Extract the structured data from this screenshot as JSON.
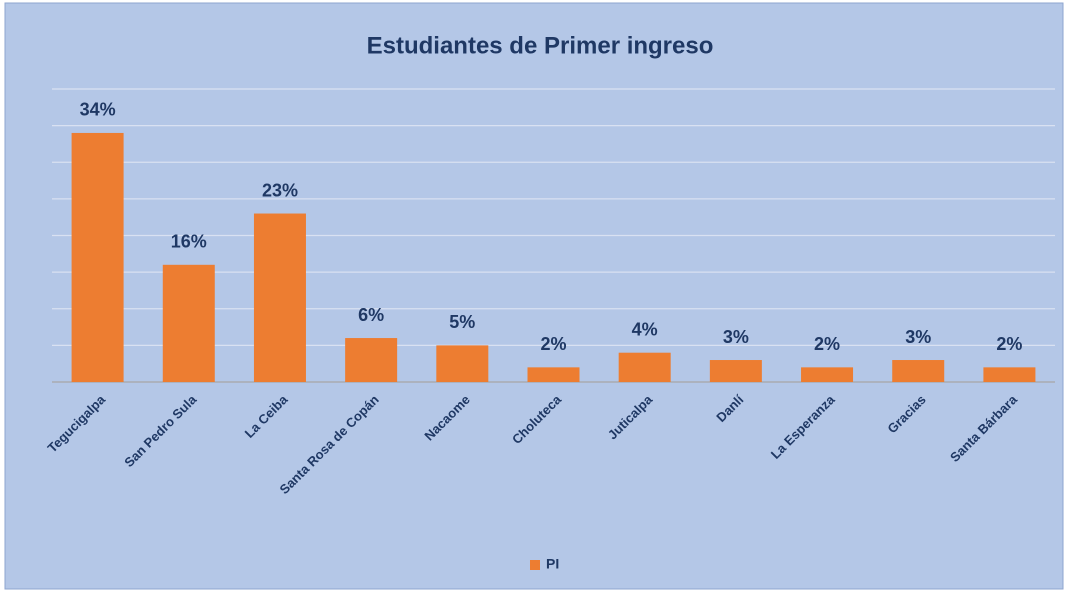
{
  "chart_data": {
    "type": "bar",
    "title": "Estudiantes  de Primer ingreso",
    "categories": [
      "Tegucigalpa",
      "San Pedro Sula",
      "La Ceiba",
      "Santa Rosa de Copán",
      "Nacaome",
      "Choluteca",
      "Juticalpa",
      "Danlí",
      "La Esperanza",
      "Gracias",
      "Santa Bárbara"
    ],
    "series": [
      {
        "name": "PI",
        "color": "#ed7d31",
        "values": [
          34,
          16,
          23,
          6,
          5,
          2,
          4,
          3,
          2,
          3,
          2
        ],
        "value_labels": [
          "34%",
          "16%",
          "23%",
          "6%",
          "5%",
          "2%",
          "4%",
          "3%",
          "2%",
          "3%",
          "2%"
        ]
      }
    ],
    "ylim": [
      0,
      40
    ],
    "yticks": [
      0,
      5,
      10,
      15,
      20,
      25,
      30,
      35,
      40
    ],
    "grid": true,
    "legend": "bottom"
  }
}
